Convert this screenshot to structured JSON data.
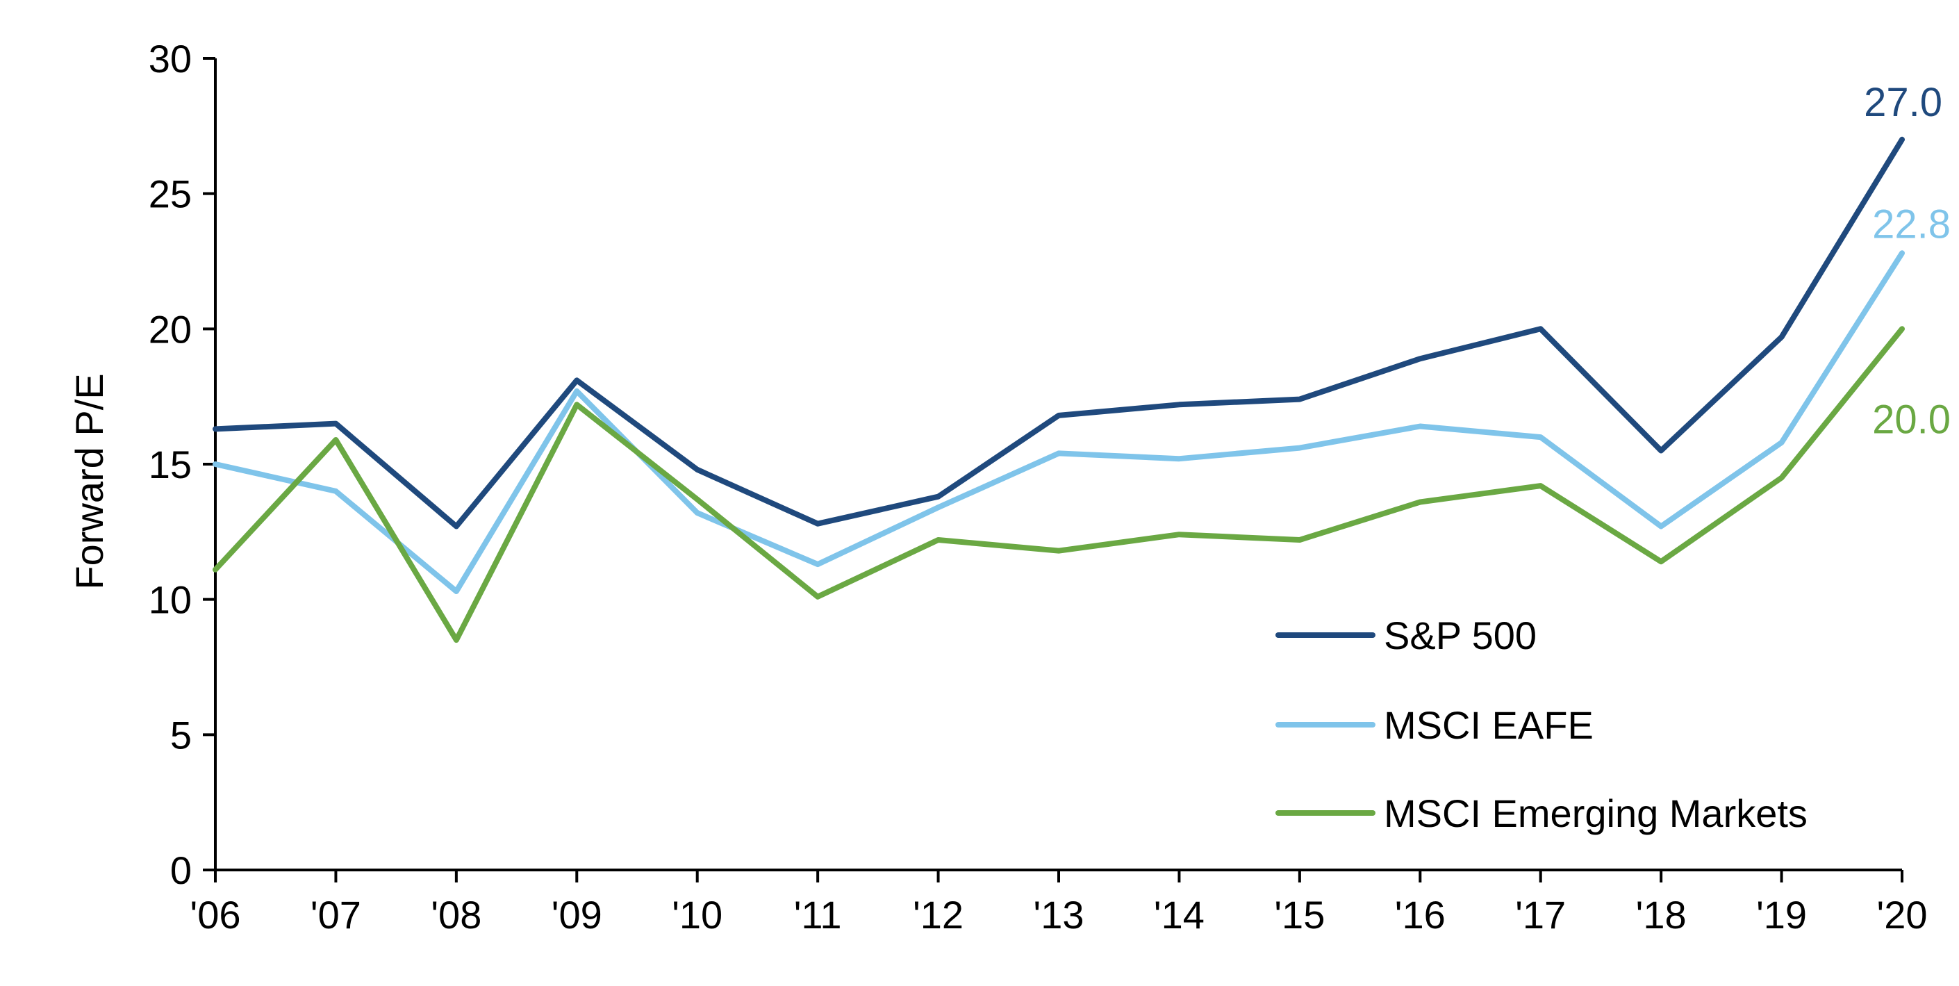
{
  "chart_data": {
    "type": "line",
    "title": "",
    "xlabel": "",
    "ylabel": "Forward P/E",
    "ylim": [
      0,
      30
    ],
    "yticks": [
      "0",
      "5",
      "10",
      "15",
      "20",
      "25",
      "30"
    ],
    "categories": [
      "'06",
      "'07",
      "'08",
      "'09",
      "'10",
      "'11",
      "'12",
      "'13",
      "'14",
      "'15",
      "'16",
      "'17",
      "'18",
      "'19",
      "'20"
    ],
    "grid": false,
    "legend_position": "bottom-right",
    "series": [
      {
        "name": "S&P 500",
        "color": "#1f497d",
        "values": [
          16.3,
          16.5,
          12.7,
          18.1,
          14.8,
          12.8,
          13.8,
          16.8,
          17.2,
          17.4,
          18.9,
          20.0,
          15.5,
          19.7,
          27.0
        ],
        "end_label": "27.0"
      },
      {
        "name": "MSCI EAFE",
        "color": "#7fc4ea",
        "values": [
          15.0,
          14.0,
          10.3,
          17.7,
          13.2,
          11.3,
          13.4,
          15.4,
          15.2,
          15.6,
          16.4,
          16.0,
          12.7,
          15.8,
          22.8
        ],
        "end_label": "22.8"
      },
      {
        "name": "MSCI Emerging Markets",
        "color": "#6aa843",
        "values": [
          11.1,
          15.9,
          8.5,
          17.2,
          13.7,
          10.1,
          12.2,
          11.8,
          12.4,
          12.2,
          13.6,
          14.2,
          11.4,
          14.5,
          20.0
        ],
        "end_label": "20.0"
      }
    ]
  }
}
